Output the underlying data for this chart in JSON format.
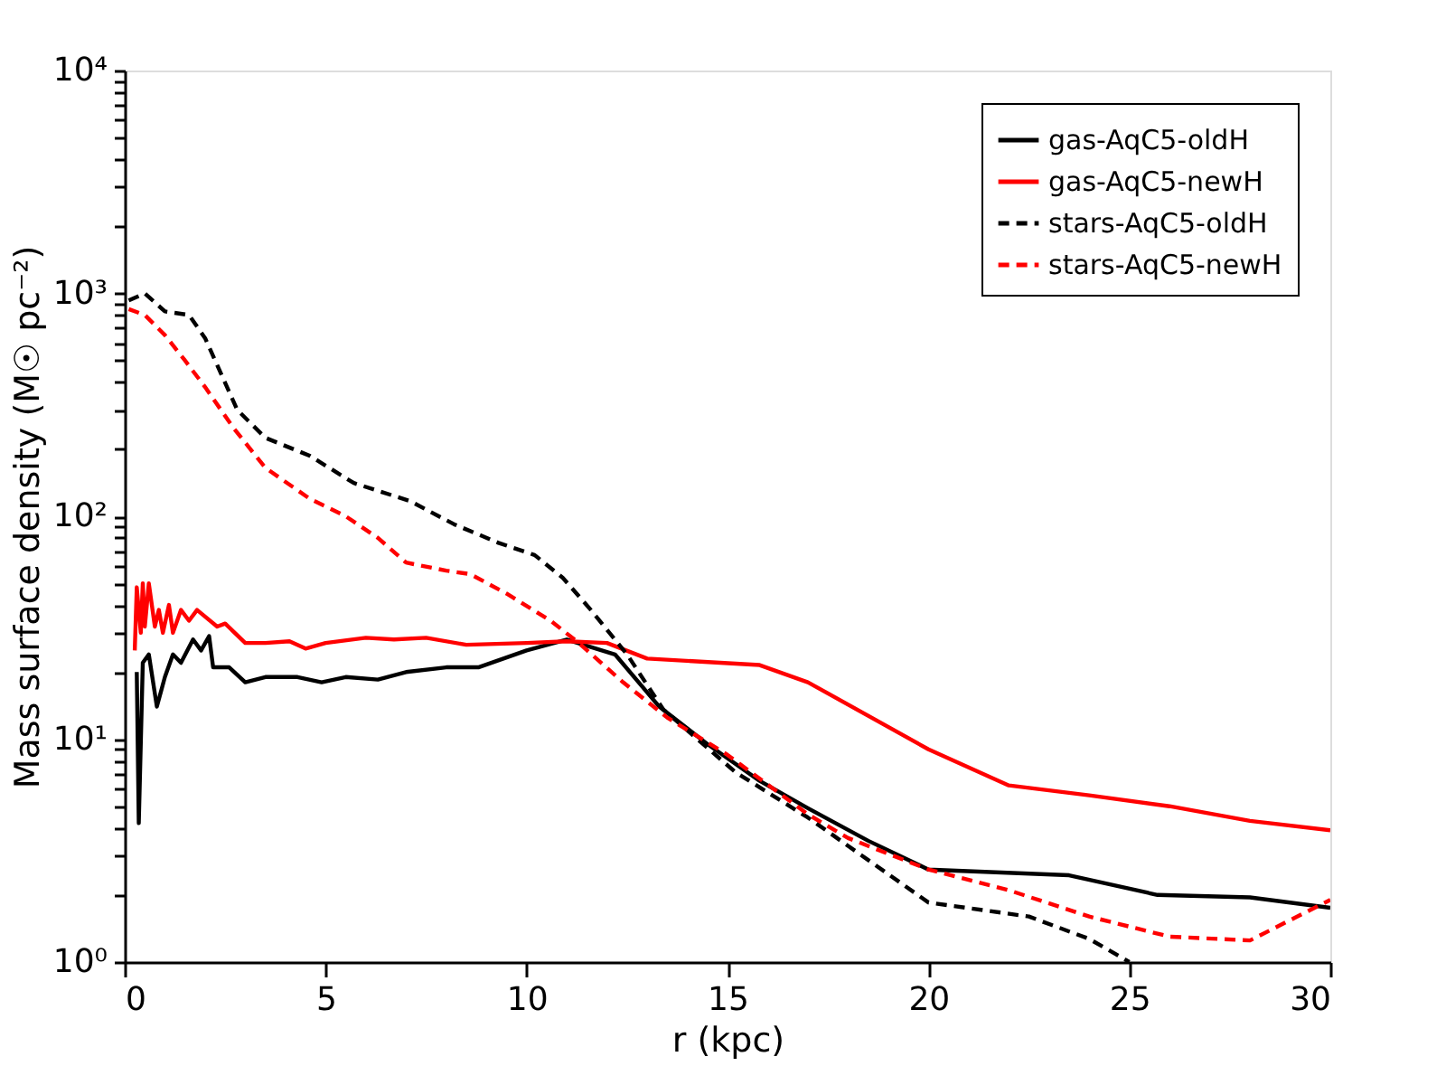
{
  "chart_data": {
    "type": "line",
    "xlabel": "r (kpc)",
    "ylabel": "Mass surface density (M☉ pc⁻²)",
    "log": "y",
    "xlim": [
      0,
      30
    ],
    "xticks": [
      0,
      5,
      10,
      15,
      20,
      25,
      30
    ],
    "ylim": [
      1,
      10000
    ],
    "yticks": [
      {
        "value": 1,
        "label": "10⁰"
      },
      {
        "value": 2,
        "label": null
      },
      {
        "value": 3,
        "label": null
      },
      {
        "value": 4,
        "label": null
      },
      {
        "value": 5,
        "label": null
      },
      {
        "value": 6,
        "label": null
      },
      {
        "value": 7,
        "label": null
      },
      {
        "value": 8,
        "label": null
      },
      {
        "value": 9,
        "label": null
      },
      {
        "value": 10,
        "label": "10¹"
      },
      {
        "value": 20,
        "label": null
      },
      {
        "value": 30,
        "label": null
      },
      {
        "value": 40,
        "label": null
      },
      {
        "value": 50,
        "label": null
      },
      {
        "value": 60,
        "label": null
      },
      {
        "value": 70,
        "label": null
      },
      {
        "value": 80,
        "label": null
      },
      {
        "value": 90,
        "label": null
      },
      {
        "value": 100,
        "label": "10²"
      },
      {
        "value": 200,
        "label": null
      },
      {
        "value": 300,
        "label": null
      },
      {
        "value": 400,
        "label": null
      },
      {
        "value": 500,
        "label": null
      },
      {
        "value": 600,
        "label": null
      },
      {
        "value": 700,
        "label": null
      },
      {
        "value": 800,
        "label": null
      },
      {
        "value": 900,
        "label": null
      },
      {
        "value": 1000,
        "label": "10³"
      },
      {
        "value": 2000,
        "label": null
      },
      {
        "value": 3000,
        "label": null
      },
      {
        "value": 4000,
        "label": null
      },
      {
        "value": 5000,
        "label": null
      },
      {
        "value": 6000,
        "label": null
      },
      {
        "value": 7000,
        "label": null
      },
      {
        "value": 8000,
        "label": null
      },
      {
        "value": 9000,
        "label": null
      },
      {
        "value": 10000,
        "label": "10⁴"
      }
    ],
    "legend": "top right",
    "grid": false,
    "series": [
      {
        "name": "gas-AqC5-oldH",
        "color": "#000000",
        "line_style": "solid",
        "x": [
          0.3,
          0.35,
          0.45,
          0.6,
          0.8,
          1.0,
          1.2,
          1.4,
          1.7,
          1.9,
          2.1,
          2.2,
          2.6,
          3.0,
          3.5,
          4.3,
          4.9,
          5.5,
          6.3,
          7,
          8,
          8.8,
          10,
          11,
          12.2,
          13.3,
          14.5,
          15.8,
          17,
          18.5,
          20,
          23.5,
          25.7,
          28,
          30
        ],
        "values": [
          20,
          4.2,
          22,
          24,
          14,
          19,
          24,
          22,
          28,
          25,
          29,
          21,
          21,
          18,
          19,
          19,
          18,
          19,
          18.5,
          20,
          21,
          21,
          25,
          28,
          24,
          14,
          9.5,
          6.5,
          4.9,
          3.5,
          2.6,
          2.45,
          2.0,
          1.95,
          1.75
        ]
      },
      {
        "name": "gas-AqC5-newH",
        "color": "#ff0000",
        "line_style": "solid",
        "x": [
          0.25,
          0.3,
          0.4,
          0.45,
          0.5,
          0.6,
          0.75,
          0.85,
          0.95,
          1.1,
          1.2,
          1.4,
          1.6,
          1.8,
          2.3,
          2.5,
          3.0,
          3.5,
          4.1,
          4.5,
          5,
          6,
          6.7,
          7.5,
          8.5,
          10,
          11,
          12,
          13,
          15.8,
          17,
          20,
          22,
          24,
          26,
          28,
          30
        ],
        "values": [
          25,
          48,
          30,
          50,
          32,
          50,
          32,
          38,
          30,
          40,
          30,
          38,
          34,
          38,
          32,
          33,
          27,
          27,
          27.5,
          25.5,
          27,
          28.5,
          28,
          28.5,
          26.5,
          27,
          27.5,
          27,
          23,
          21.5,
          18,
          9,
          6.2,
          5.6,
          5.0,
          4.3,
          3.9
        ]
      },
      {
        "name": "stars-AqC5-oldH",
        "color": "#000000",
        "line_style": "dashed",
        "x": [
          0.1,
          0.5,
          1.0,
          1.6,
          2.0,
          2.8,
          3.5,
          4.6,
          5.7,
          7.1,
          8.2,
          9.3,
          10.2,
          10.9,
          11.6,
          12.5,
          13.4,
          15.2,
          17,
          20,
          22.5,
          24,
          25
        ],
        "values": [
          930,
          1000,
          830,
          800,
          630,
          300,
          225,
          187,
          141,
          117,
          92,
          76,
          67,
          53,
          38,
          24,
          13.6,
          7.1,
          4.45,
          1.85,
          1.6,
          1.27,
          1.0
        ]
      },
      {
        "name": "stars-AqC5-newH",
        "color": "#ff0000",
        "line_style": "dashed",
        "x": [
          0.1,
          0.5,
          1.0,
          1.5,
          2,
          2.7,
          3.5,
          4.6,
          5.5,
          6.3,
          7,
          8,
          8.6,
          9.5,
          10.6,
          11.3,
          12.4,
          13.5,
          15,
          17,
          18,
          20,
          22,
          24,
          26,
          28,
          30
        ],
        "values": [
          850,
          800,
          650,
          500,
          380,
          250,
          165,
          120,
          100,
          80,
          62,
          57,
          55,
          45,
          34,
          27,
          18,
          12.5,
          8.5,
          4.6,
          3.6,
          2.6,
          2.1,
          1.6,
          1.3,
          1.25,
          1.9
        ]
      }
    ]
  }
}
